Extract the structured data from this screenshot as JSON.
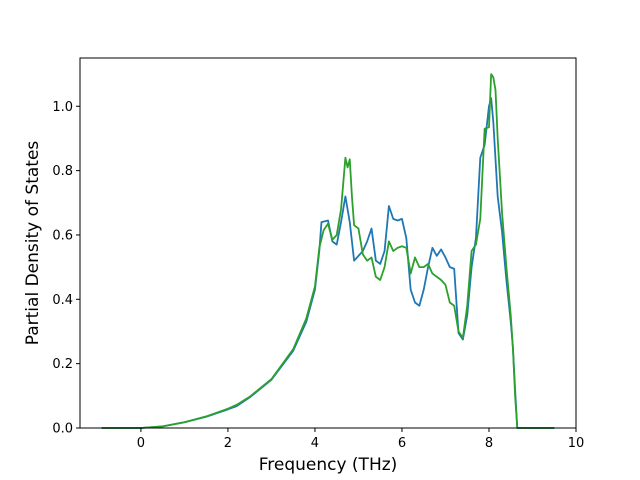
{
  "chart_data": {
    "type": "line",
    "title": "",
    "xlabel": "Frequency (THz)",
    "ylabel": "Partial Density of States",
    "xlim": [
      -1.4,
      10.0
    ],
    "ylim": [
      0.0,
      1.15
    ],
    "xticks": [
      0,
      2,
      4,
      6,
      8,
      10
    ],
    "yticks": [
      0.0,
      0.2,
      0.4,
      0.6,
      0.8,
      1.0
    ],
    "xtick_labels": [
      "0",
      "2",
      "4",
      "6",
      "8",
      "10"
    ],
    "ytick_labels": [
      "0.0",
      "0.2",
      "0.4",
      "0.6",
      "0.8",
      "1.0"
    ],
    "grid": false,
    "legend": "none",
    "series": [
      {
        "color": "#1f77b4",
        "x": [
          -0.9,
          0.0,
          0.5,
          1.0,
          1.5,
          2.0,
          2.2,
          2.5,
          3.0,
          3.5,
          3.8,
          4.0,
          4.1,
          4.15,
          4.3,
          4.4,
          4.5,
          4.6,
          4.7,
          4.8,
          4.9,
          5.0,
          5.1,
          5.2,
          5.3,
          5.4,
          5.5,
          5.6,
          5.7,
          5.8,
          5.9,
          6.0,
          6.1,
          6.2,
          6.3,
          6.4,
          6.5,
          6.6,
          6.7,
          6.8,
          6.9,
          7.0,
          7.1,
          7.2,
          7.3,
          7.4,
          7.5,
          7.6,
          7.7,
          7.8,
          7.9,
          8.0,
          8.05,
          8.1,
          8.2,
          8.3,
          8.4,
          8.5,
          8.55,
          8.6,
          8.65,
          9.0,
          9.5
        ],
        "y": [
          0.0,
          0.0,
          0.005,
          0.018,
          0.035,
          0.058,
          0.068,
          0.095,
          0.15,
          0.24,
          0.33,
          0.43,
          0.55,
          0.64,
          0.645,
          0.58,
          0.57,
          0.64,
          0.72,
          0.64,
          0.52,
          0.535,
          0.55,
          0.58,
          0.62,
          0.52,
          0.51,
          0.55,
          0.69,
          0.65,
          0.645,
          0.65,
          0.59,
          0.43,
          0.39,
          0.38,
          0.43,
          0.5,
          0.56,
          0.535,
          0.555,
          0.53,
          0.5,
          0.495,
          0.295,
          0.275,
          0.35,
          0.5,
          0.59,
          0.84,
          0.88,
          1.0,
          1.025,
          0.95,
          0.72,
          0.61,
          0.46,
          0.33,
          0.25,
          0.12,
          0.0,
          0.0,
          0.0
        ]
      },
      {
        "color": "#2ca02c",
        "x": [
          -0.9,
          0.0,
          0.5,
          1.0,
          1.5,
          2.0,
          2.2,
          2.5,
          3.0,
          3.5,
          3.8,
          4.0,
          4.1,
          4.2,
          4.3,
          4.4,
          4.5,
          4.6,
          4.7,
          4.75,
          4.8,
          4.85,
          4.9,
          5.0,
          5.1,
          5.2,
          5.3,
          5.4,
          5.5,
          5.6,
          5.7,
          5.8,
          5.9,
          6.0,
          6.1,
          6.2,
          6.3,
          6.4,
          6.5,
          6.6,
          6.7,
          6.8,
          6.9,
          7.0,
          7.1,
          7.2,
          7.3,
          7.4,
          7.5,
          7.6,
          7.7,
          7.8,
          7.9,
          8.0,
          8.05,
          8.1,
          8.15,
          8.2,
          8.3,
          8.4,
          8.5,
          8.55,
          8.6,
          8.65,
          9.0,
          9.5
        ],
        "y": [
          0.0,
          0.0,
          0.005,
          0.018,
          0.036,
          0.06,
          0.072,
          0.097,
          0.152,
          0.245,
          0.34,
          0.44,
          0.56,
          0.615,
          0.635,
          0.585,
          0.6,
          0.68,
          0.84,
          0.81,
          0.835,
          0.72,
          0.63,
          0.62,
          0.54,
          0.52,
          0.53,
          0.47,
          0.46,
          0.5,
          0.58,
          0.55,
          0.56,
          0.565,
          0.56,
          0.48,
          0.53,
          0.5,
          0.5,
          0.51,
          0.48,
          0.47,
          0.46,
          0.445,
          0.39,
          0.38,
          0.3,
          0.28,
          0.38,
          0.55,
          0.57,
          0.65,
          0.93,
          0.935,
          1.1,
          1.09,
          1.05,
          0.9,
          0.67,
          0.5,
          0.35,
          0.25,
          0.1,
          0.0,
          0.0,
          0.0
        ]
      }
    ]
  }
}
